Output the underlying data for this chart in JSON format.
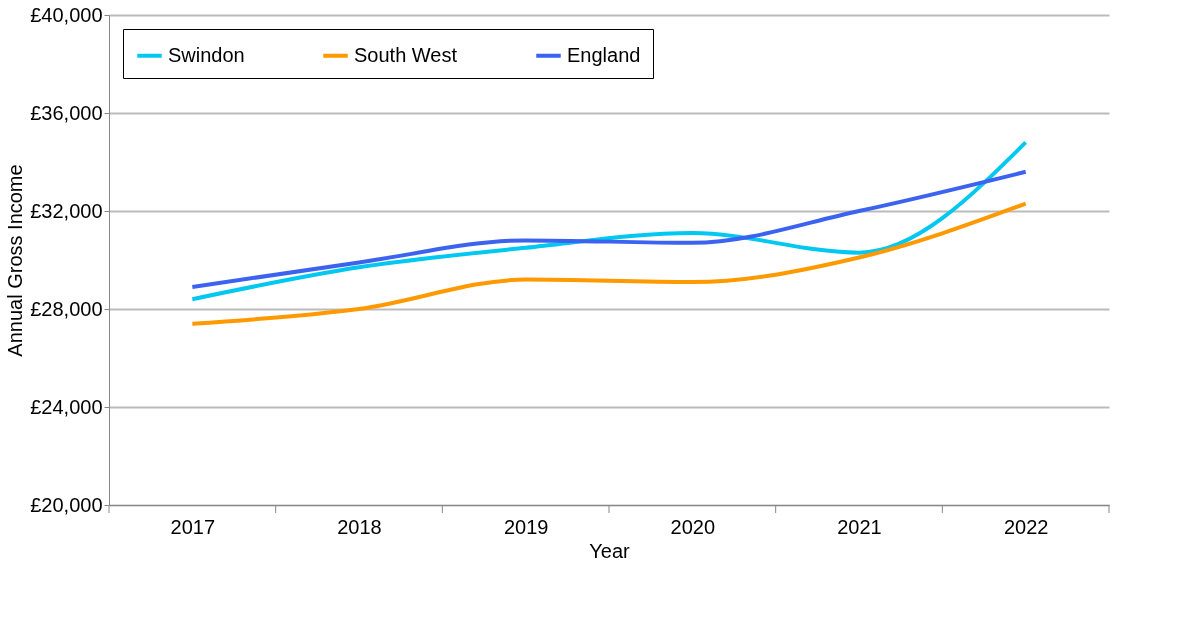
{
  "chart_data": {
    "type": "line",
    "xlabel": "Year",
    "ylabel": "Annual Gross Income",
    "categories": [
      "2017",
      "2018",
      "2019",
      "2020",
      "2021",
      "2022"
    ],
    "series": [
      {
        "name": "Swindon",
        "color": "#00c8f0",
        "values": [
          28400,
          29700,
          30500,
          31100,
          30300,
          34800
        ]
      },
      {
        "name": "South West",
        "color": "#ff9900",
        "values": [
          27400,
          28000,
          29200,
          29100,
          30100,
          32300
        ]
      },
      {
        "name": "England",
        "color": "#3b63f0",
        "values": [
          28900,
          29900,
          30800,
          30700,
          32000,
          33600
        ]
      }
    ],
    "ylim": [
      20000,
      40000
    ],
    "yticks": [
      {
        "value": 20000,
        "label": "£20,000"
      },
      {
        "value": 24000,
        "label": "£24,000"
      },
      {
        "value": 28000,
        "label": "£28,000"
      },
      {
        "value": 32000,
        "label": "£32,000"
      },
      {
        "value": 36000,
        "label": "£36,000"
      },
      {
        "value": 40000,
        "label": "£40,000"
      }
    ],
    "grid": "y",
    "legend": "top left",
    "line_style": "solid",
    "marker": "none"
  }
}
